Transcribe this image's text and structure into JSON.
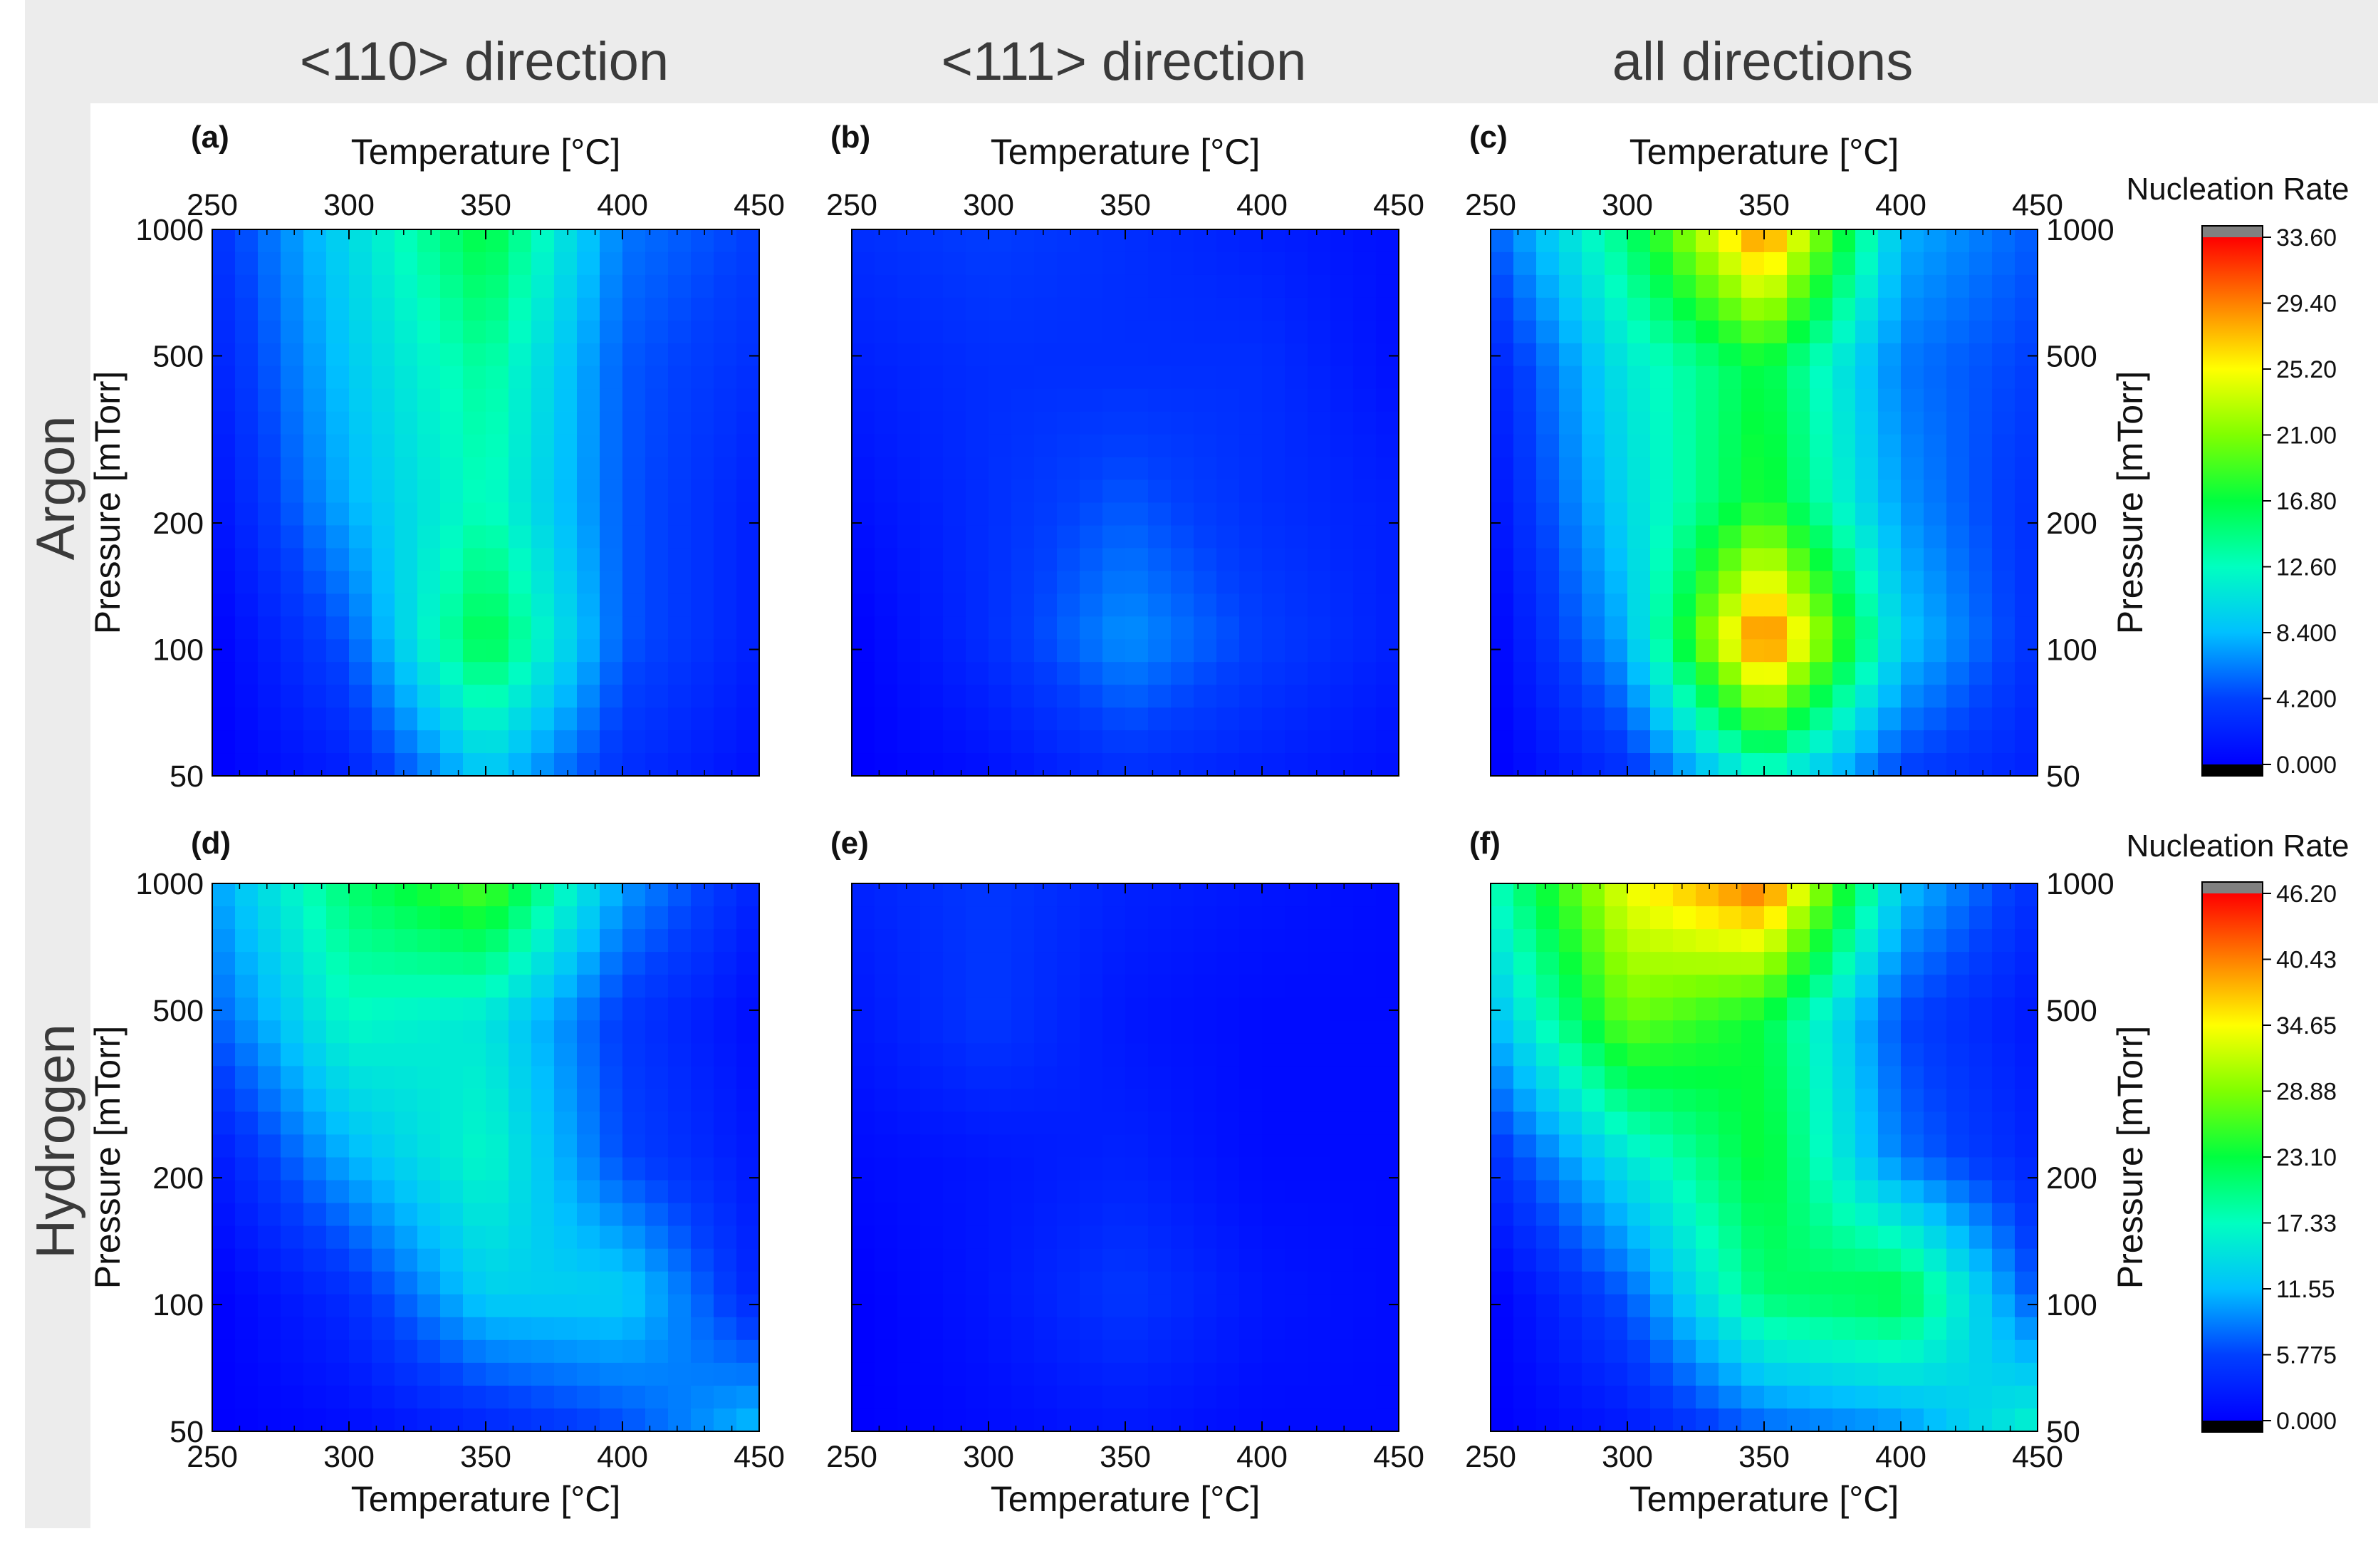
{
  "column_headers": [
    "<110> direction",
    "<111> direction",
    "all directions"
  ],
  "row_headers": [
    "Argon",
    "Hydrogen"
  ],
  "colorbar_title": "Nucleation Rate",
  "colorbar_top_ticks": [
    "33.60",
    "29.40",
    "25.20",
    "21.00",
    "16.80",
    "12.60",
    "8.400",
    "4.200",
    "0.000"
  ],
  "colorbar_bottom_ticks": [
    "46.20",
    "40.43",
    "34.65",
    "28.88",
    "23.10",
    "17.33",
    "11.55",
    "5.775",
    "0.000"
  ],
  "colors": {
    "header_band": "#ececec",
    "low": "#0000ff",
    "mid": "#00ff80",
    "high": "#ff0000",
    "over": "#808080",
    "under": "#000000"
  },
  "chart_data": [
    {
      "type": "heatmap",
      "panel": "(a)",
      "xlabel": "Temperature [°C]",
      "ylabel": "Pressure [mTorr]",
      "x": [
        250,
        300,
        350,
        400,
        450
      ],
      "y": [
        50,
        100,
        200,
        500,
        1000
      ],
      "xticks": [
        "250",
        "300",
        "350",
        "400",
        "450"
      ],
      "yticks": [
        "50",
        "100",
        "200",
        "500",
        "1000"
      ],
      "yscale": "log",
      "vmin": 0,
      "vmax": 33.6,
      "z": [
        [
          0,
          2,
          9,
          3,
          1
        ],
        [
          0,
          5,
          17,
          5,
          2
        ],
        [
          1,
          8,
          13,
          5,
          2
        ],
        [
          2,
          9,
          14,
          5,
          3
        ],
        [
          3,
          10,
          17,
          6,
          4
        ]
      ]
    },
    {
      "type": "heatmap",
      "panel": "(b)",
      "xlabel": "Temperature [°C]",
      "ylabel": "",
      "x": [
        250,
        300,
        350,
        400,
        450
      ],
      "y": [
        50,
        100,
        200,
        500,
        1000
      ],
      "xticks": [
        "250",
        "300",
        "350",
        "400",
        "450"
      ],
      "yticks": [],
      "yscale": "log",
      "vmin": 0,
      "vmax": 33.6,
      "z": [
        [
          0,
          1,
          3,
          2,
          1
        ],
        [
          0,
          3,
          7,
          4,
          2
        ],
        [
          1,
          3,
          5,
          3,
          2
        ],
        [
          2,
          3,
          3,
          3,
          1
        ],
        [
          3,
          4,
          3,
          2,
          1
        ]
      ]
    },
    {
      "type": "heatmap",
      "panel": "(c)",
      "xlabel": "Temperature [°C]",
      "ylabel": "Pressure [mTorr]",
      "x": [
        250,
        300,
        350,
        400,
        450
      ],
      "y": [
        50,
        100,
        200,
        500,
        1000
      ],
      "xticks": [
        "250",
        "300",
        "350",
        "400",
        "450"
      ],
      "yticks": [
        "50",
        "100",
        "200",
        "500",
        "1000"
      ],
      "yscale": "log",
      "vmin": 0,
      "vmax": 33.6,
      "z": [
        [
          0,
          3,
          12,
          4,
          2
        ],
        [
          0,
          8,
          31,
          9,
          3
        ],
        [
          1,
          10,
          18,
          7,
          3
        ],
        [
          2,
          11,
          17,
          6,
          4
        ],
        [
          5,
          15,
          30,
          8,
          5
        ]
      ]
    },
    {
      "type": "heatmap",
      "panel": "(d)",
      "xlabel": "Temperature [°C]",
      "ylabel": "Pressure [mTorr]",
      "x": [
        250,
        300,
        350,
        400,
        450
      ],
      "y": [
        50,
        100,
        200,
        500,
        1000
      ],
      "xticks": [
        "250",
        "300",
        "350",
        "400",
        "450"
      ],
      "yticks": [
        "50",
        "100",
        "200",
        "500",
        "1000"
      ],
      "yscale": "log",
      "vmin": 0,
      "vmax": 46.2,
      "z": [
        [
          0,
          1,
          3,
          6,
          12
        ],
        [
          0,
          4,
          13,
          13,
          3
        ],
        [
          2,
          11,
          17,
          6,
          2
        ],
        [
          7,
          17,
          15,
          5,
          1
        ],
        [
          10,
          21,
          27,
          10,
          3
        ]
      ]
    },
    {
      "type": "heatmap",
      "panel": "(e)",
      "xlabel": "Temperature [°C]",
      "ylabel": "",
      "x": [
        250,
        300,
        350,
        400,
        450
      ],
      "y": [
        50,
        100,
        200,
        500,
        1000
      ],
      "xticks": [
        "250",
        "300",
        "350",
        "400",
        "450"
      ],
      "yticks": [],
      "yscale": "log",
      "vmin": 0,
      "vmax": 46.2,
      "z": [
        [
          0,
          1,
          2,
          1,
          1
        ],
        [
          0,
          2,
          5,
          2,
          1
        ],
        [
          1,
          2,
          3,
          1,
          1
        ],
        [
          2,
          5,
          2,
          1,
          1
        ],
        [
          3,
          5,
          3,
          2,
          1
        ]
      ]
    },
    {
      "type": "heatmap",
      "panel": "(f)",
      "xlabel": "Temperature [°C]",
      "ylabel": "Pressure [mTorr]",
      "x": [
        250,
        300,
        350,
        400,
        450
      ],
      "y": [
        50,
        100,
        200,
        500,
        1000
      ],
      "xticks": [
        "250",
        "300",
        "350",
        "400",
        "450"
      ],
      "yticks": [
        "50",
        "100",
        "200",
        "500",
        "1000"
      ],
      "yscale": "log",
      "vmin": 0,
      "vmax": 46.2,
      "z": [
        [
          0,
          2,
          7,
          9,
          17
        ],
        [
          0,
          7,
          21,
          23,
          6
        ],
        [
          4,
          15,
          24,
          8,
          3
        ],
        [
          11,
          28,
          23,
          6,
          2
        ],
        [
          17,
          34,
          42,
          12,
          4
        ]
      ]
    }
  ]
}
